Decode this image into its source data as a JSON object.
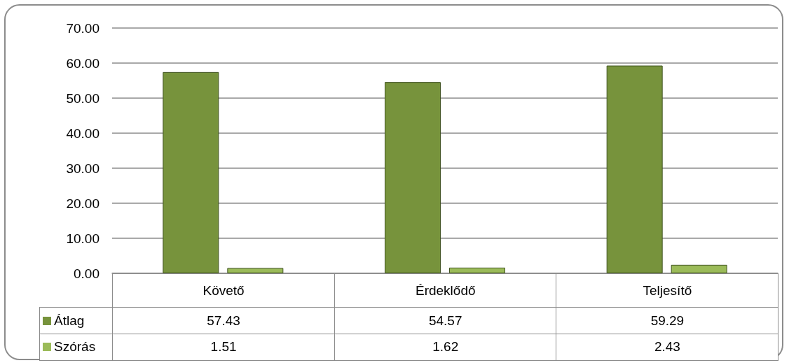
{
  "chart_data": {
    "type": "bar",
    "categories": [
      "Követő",
      "Érdeklődő",
      "Teljesítő"
    ],
    "series": [
      {
        "name": "Átlag",
        "color": "#77933c",
        "values": [
          57.43,
          54.57,
          59.29
        ]
      },
      {
        "name": "Szórás",
        "color": "#9bbb59",
        "values": [
          1.51,
          1.62,
          2.43
        ]
      }
    ],
    "ylim": [
      0,
      70
    ],
    "yticks": [
      {
        "value": 0,
        "label": "0.00"
      },
      {
        "value": 10,
        "label": "10.00"
      },
      {
        "value": 20,
        "label": "20.00"
      },
      {
        "value": 30,
        "label": "30.00"
      },
      {
        "value": 40,
        "label": "40.00"
      },
      {
        "value": 50,
        "label": "50.00"
      },
      {
        "value": 60,
        "label": "60.00"
      },
      {
        "value": 70,
        "label": "70.00"
      }
    ],
    "grid": "y",
    "legend": "bottom",
    "data_labels": true
  }
}
